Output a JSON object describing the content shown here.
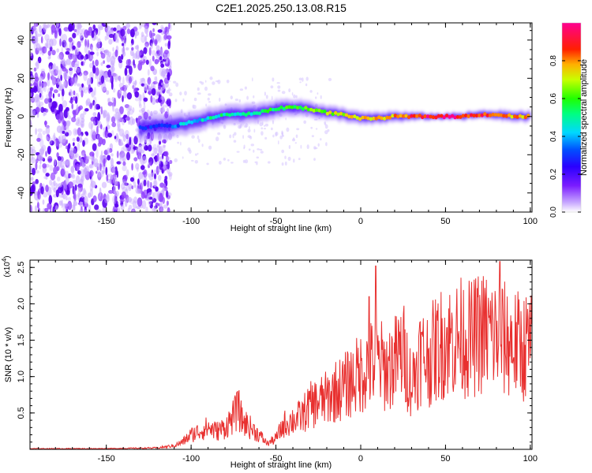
{
  "title": "C2E1.2025.250.13.08.R15",
  "chart_data": [
    {
      "type": "heatmap",
      "name": "spectrogram",
      "xlabel": "Height of straight line (km)",
      "ylabel": "Frequency (Hz)",
      "xlim": [
        -195,
        101
      ],
      "ylim": [
        -50,
        49
      ],
      "xticks": [
        -150,
        -100,
        -50,
        0,
        50,
        100
      ],
      "yticks": [
        -40,
        -20,
        0,
        20,
        40
      ],
      "colorbar": {
        "label": "Normalized spectral amplitude",
        "range": [
          0,
          1
        ],
        "ticks": [
          0.0,
          0.2,
          0.4,
          0.6,
          0.8
        ],
        "tick_labels": [
          "0.0",
          "0.2",
          "0.4",
          "0.6",
          "0.8"
        ],
        "colors": [
          "#ffffff",
          "#b080ff",
          "#5000ff",
          "#0030ff",
          "#00d0ff",
          "#00ff40",
          "#c0ff00",
          "#ffc000",
          "#ff3000",
          "#ff0090"
        ]
      },
      "noise_region_x": [
        -195,
        -118
      ],
      "ridge": {
        "x": [
          -130,
          -120,
          -110,
          -100,
          -90,
          -80,
          -70,
          -60,
          -50,
          -40,
          -30,
          -20,
          -10,
          0,
          10,
          20,
          30,
          40,
          50,
          60,
          70,
          80,
          90,
          100
        ],
        "freq": [
          -6,
          -5,
          -5,
          -3,
          -1,
          1,
          1,
          2,
          4,
          5,
          4,
          2,
          1,
          -1,
          -1,
          0,
          0,
          0,
          0,
          0,
          1,
          1,
          0,
          0
        ],
        "amplitude": [
          0.3,
          0.35,
          0.4,
          0.45,
          0.5,
          0.52,
          0.5,
          0.55,
          0.58,
          0.62,
          0.65,
          0.7,
          0.72,
          0.74,
          0.78,
          0.8,
          0.88,
          0.95,
          0.98,
          0.92,
          0.9,
          0.85,
          0.8,
          0.8
        ]
      }
    },
    {
      "type": "line",
      "name": "snr",
      "xlabel": "Height of straight line (km)",
      "ylabel": "SNR (10 * v/v)",
      "yscale_label": "(x10",
      "yscale_exp": "4",
      "xlim": [
        -195,
        101
      ],
      "ylim": [
        0,
        2.6
      ],
      "xticks": [
        -150,
        -100,
        -50,
        0,
        50,
        100
      ],
      "yticks": [
        0.5,
        1.0,
        1.5,
        2.0,
        2.5
      ],
      "ytick_labels": [
        "0.5",
        "1.0",
        "1.5",
        "2.0",
        "2.5"
      ],
      "series": [
        {
          "name": "SNR",
          "color": "#e8302f",
          "x": [
            -195,
            -150,
            -120,
            -110,
            -105,
            -100,
            -95,
            -90,
            -85,
            -80,
            -75,
            -72,
            -70,
            -65,
            -60,
            -55,
            -50,
            -45,
            -40,
            -35,
            -30,
            -25,
            -20,
            -15,
            -10,
            -5,
            0,
            5,
            10,
            15,
            20,
            25,
            30,
            35,
            40,
            45,
            50,
            55,
            60,
            65,
            70,
            75,
            80,
            85,
            90,
            95,
            100
          ],
          "y": [
            0.01,
            0.01,
            0.02,
            0.05,
            0.1,
            0.2,
            0.25,
            0.3,
            0.25,
            0.3,
            0.45,
            0.55,
            0.4,
            0.3,
            0.2,
            0.08,
            0.15,
            0.35,
            0.4,
            0.45,
            0.6,
            0.65,
            0.7,
            0.8,
            0.85,
            0.95,
            1.05,
            1.15,
            1.2,
            1.1,
            1.2,
            1.35,
            0.9,
            1.3,
            1.25,
            1.4,
            1.5,
            1.5,
            1.55,
            1.5,
            1.6,
            1.6,
            1.55,
            1.5,
            1.45,
            1.4,
            1.45
          ]
        }
      ],
      "peaks": [
        {
          "x": -73,
          "y": 0.78
        },
        {
          "x": 5,
          "y": 2.1
        },
        {
          "x": 9,
          "y": 2.52
        },
        {
          "x": 82,
          "y": 2.58
        }
      ]
    }
  ]
}
